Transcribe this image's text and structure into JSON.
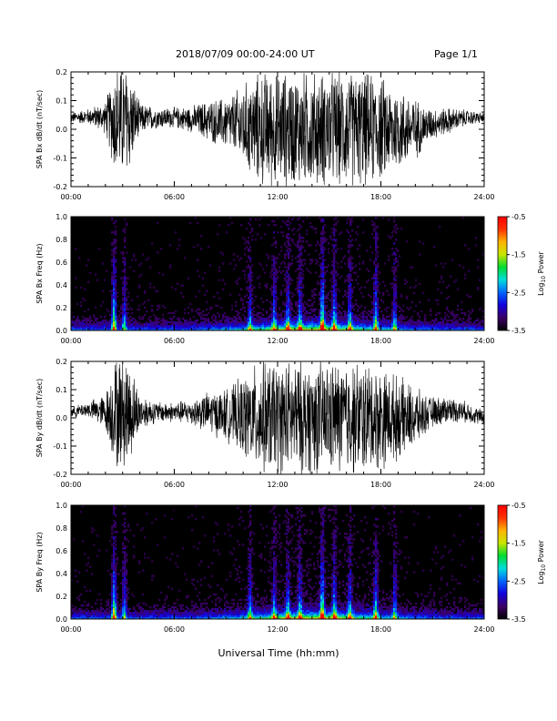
{
  "header": {
    "title": "2018/07/09  00:00-24:00 UT",
    "page": "Page 1/1"
  },
  "xlabel": "Universal Time (hh:mm)",
  "colorbar": {
    "label": "Log10 Power",
    "label_base": "Log",
    "label_sub": "10",
    "label_rest": " Power",
    "ticks": [
      "-0.5",
      "-1.5",
      "-2.5",
      "-3.5"
    ],
    "tick_values": [
      -0.5,
      -1.5,
      -2.5,
      -3.5
    ],
    "range": [
      -3.5,
      -0.5
    ],
    "colormap": [
      "#000000",
      "#3c0064",
      "#1400dc",
      "#0064ff",
      "#00dcdc",
      "#00dc32",
      "#c8e600",
      "#ffb400",
      "#ff3200",
      "#ff0000"
    ]
  },
  "chart_data": [
    {
      "type": "line",
      "ylabel": "SPA Bx dB/dt (nT/sec)",
      "ylim": [
        -0.2,
        0.2
      ],
      "yticks": [
        "0.2",
        "0.1",
        "0.0",
        "-0.1",
        "-0.2"
      ],
      "ytick_values": [
        0.2,
        0.1,
        0.0,
        -0.1,
        -0.2
      ],
      "xlim": [
        0,
        24
      ],
      "xticks": [
        "00:00",
        "06:00",
        "12:00",
        "18:00",
        "24:00"
      ],
      "xtick_values": [
        0,
        6,
        12,
        18,
        24
      ],
      "color": "#000000",
      "envelope": {
        "x_hours": [
          0,
          1,
          2,
          2.6,
          3.3,
          4,
          5,
          6,
          7,
          8,
          9,
          9.5,
          10,
          11,
          12,
          13,
          14,
          15,
          16,
          17,
          18,
          19,
          20,
          20.5,
          21,
          22,
          23,
          24
        ],
        "center": [
          0.04,
          0.045,
          0.04,
          0.03,
          0.03,
          0.035,
          0.04,
          0.04,
          0.035,
          0.03,
          0.02,
          0.02,
          0.01,
          0.0,
          0.0,
          0.0,
          0.0,
          0.0,
          0.0,
          0.0,
          0.0,
          0.0,
          0.0,
          0.01,
          0.02,
          0.03,
          0.04,
          0.04
        ],
        "half_width": [
          0.02,
          0.03,
          0.06,
          0.22,
          0.22,
          0.06,
          0.04,
          0.04,
          0.05,
          0.08,
          0.1,
          0.12,
          0.16,
          0.22,
          0.22,
          0.22,
          0.22,
          0.22,
          0.22,
          0.22,
          0.2,
          0.16,
          0.12,
          0.08,
          0.06,
          0.05,
          0.03,
          0.02
        ]
      }
    },
    {
      "type": "heatmap",
      "ylabel": "SPA Bx Freq (Hz)",
      "ylim": [
        0.0,
        1.0
      ],
      "yticks": [
        "1.0",
        "0.8",
        "0.6",
        "0.4",
        "0.2",
        "0.0"
      ],
      "ytick_values": [
        1.0,
        0.8,
        0.6,
        0.4,
        0.2,
        0.0
      ],
      "xlim": [
        0,
        24
      ],
      "xticks": [
        "00:00",
        "06:00",
        "12:00",
        "18:00",
        "24:00"
      ],
      "xtick_values": [
        0,
        6,
        12,
        18,
        24
      ],
      "zlim": [
        -3.5,
        -0.5
      ],
      "bursts_hours": [
        2.5,
        3.1,
        10.4,
        11.8,
        12.6,
        13.3,
        14.6,
        15.3,
        16.2,
        17.7,
        18.8
      ],
      "bursts_strength": [
        1.0,
        0.55,
        0.55,
        0.55,
        0.6,
        0.6,
        1.0,
        0.7,
        0.6,
        0.75,
        0.55
      ]
    },
    {
      "type": "line",
      "ylabel": "SPA By dB/dt (nT/sec)",
      "ylim": [
        -0.2,
        0.2
      ],
      "yticks": [
        "0.2",
        "0.1",
        "0.0",
        "-0.1",
        "-0.2"
      ],
      "ytick_values": [
        0.2,
        0.1,
        0.0,
        -0.1,
        -0.2
      ],
      "xlim": [
        0,
        24
      ],
      "xticks": [
        "00:00",
        "06:00",
        "12:00",
        "18:00",
        "24:00"
      ],
      "xtick_values": [
        0,
        6,
        12,
        18,
        24
      ],
      "color": "#000000",
      "envelope": {
        "x_hours": [
          0,
          1,
          2,
          2.6,
          3.3,
          4,
          5,
          6,
          7,
          8,
          9,
          9.5,
          10,
          11,
          12,
          13,
          14,
          15,
          16,
          17,
          18,
          19,
          20,
          20.5,
          21,
          22,
          23,
          24
        ],
        "center": [
          0.02,
          0.03,
          0.02,
          0.02,
          0.02,
          0.02,
          0.02,
          0.02,
          0.02,
          0.02,
          0.01,
          0.01,
          0.0,
          0.0,
          0.0,
          0.0,
          0.0,
          0.0,
          0.0,
          0.0,
          0.0,
          0.0,
          0.0,
          0.01,
          0.02,
          0.03,
          0.02,
          0.0
        ],
        "half_width": [
          0.02,
          0.03,
          0.07,
          0.22,
          0.22,
          0.07,
          0.04,
          0.04,
          0.05,
          0.08,
          0.1,
          0.12,
          0.16,
          0.22,
          0.22,
          0.22,
          0.22,
          0.22,
          0.22,
          0.22,
          0.2,
          0.16,
          0.12,
          0.08,
          0.06,
          0.05,
          0.04,
          0.03
        ]
      }
    },
    {
      "type": "heatmap",
      "ylabel": "SPA By Freq (Hz)",
      "ylim": [
        0.0,
        1.0
      ],
      "yticks": [
        "1.0",
        "0.8",
        "0.6",
        "0.4",
        "0.2",
        "0.0"
      ],
      "ytick_values": [
        1.0,
        0.8,
        0.6,
        0.4,
        0.2,
        0.0
      ],
      "xlim": [
        0,
        24
      ],
      "xticks": [
        "00:00",
        "06:00",
        "12:00",
        "18:00",
        "24:00"
      ],
      "xtick_values": [
        0,
        6,
        12,
        18,
        24
      ],
      "zlim": [
        -3.5,
        -0.5
      ],
      "bursts_hours": [
        2.5,
        3.1,
        10.4,
        11.8,
        12.6,
        13.3,
        14.6,
        15.3,
        16.2,
        17.7,
        18.8
      ],
      "bursts_strength": [
        1.0,
        0.55,
        0.6,
        0.55,
        0.6,
        0.6,
        1.0,
        0.7,
        0.6,
        0.75,
        0.55
      ]
    }
  ]
}
